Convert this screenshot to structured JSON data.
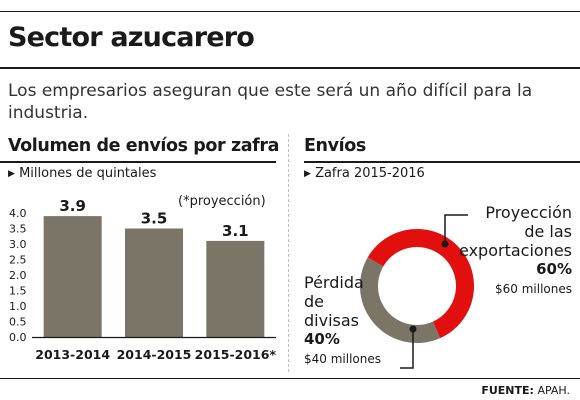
{
  "header": {
    "title": "Sector azucarero",
    "subtitle": "Los empresarios aseguran que este será un año difícil para la industria."
  },
  "left_panel": {
    "title": "Volumen de envíos por zafra",
    "subtitle": "Millones de quintales",
    "note": "(*proyección)"
  },
  "right_panel": {
    "title": "Envíos",
    "subtitle": "Zafra 2015-2016"
  },
  "footer": {
    "source_label": "FUENTE:",
    "source_value": "APAH."
  },
  "colors": {
    "bar": "#7a7567",
    "loss": "#7a7567",
    "export": "#e1100f",
    "text": "#1a1a1a",
    "bullet": "#1a1a1a"
  },
  "chart_data": [
    {
      "type": "bar",
      "title": "Volumen de envíos por zafra",
      "subtitle": "Millones de quintales",
      "categories": [
        "2013-2014",
        "2014-2015",
        "2015-2016*"
      ],
      "values": [
        3.9,
        3.5,
        3.1
      ],
      "value_labels": [
        "3.9",
        "3.5",
        "3.1"
      ],
      "yticks": [
        "0.0",
        "0.5",
        "1.0",
        "1.5",
        "2.0",
        "2.5",
        "3.0",
        "3.5",
        "4.0"
      ],
      "ylim": [
        0,
        4.0
      ],
      "xlabel": "",
      "ylabel": "",
      "grid": false,
      "annotation": "(*proyección)"
    },
    {
      "type": "pie",
      "title": "Envíos",
      "subtitle": "Zafra 2015-2016",
      "donut": true,
      "slices": [
        {
          "label_lines": [
            "Proyección",
            "de las",
            "exportaciones"
          ],
          "percent_label": "60%",
          "amount_label": "$60 millones",
          "value": 60
        },
        {
          "label_lines": [
            "Pérdida",
            "de",
            "divisas"
          ],
          "percent_label": "40%",
          "amount_label": "$40 millones",
          "value": 40
        }
      ]
    }
  ]
}
